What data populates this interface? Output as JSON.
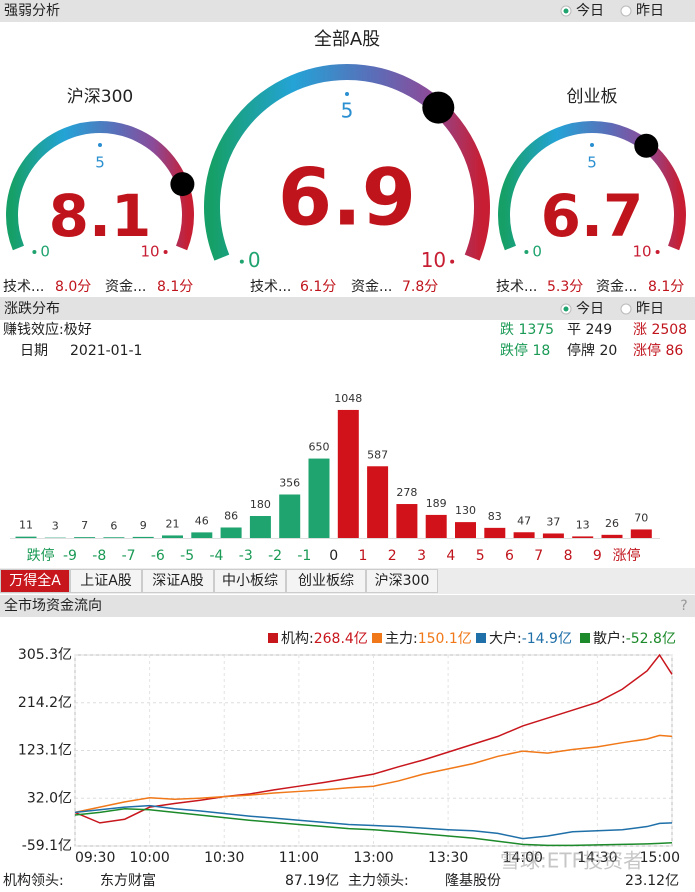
{
  "strength": {
    "title": "强弱分析",
    "options": [
      "今日",
      "昨日"
    ],
    "gauges": [
      {
        "name": "沪深300",
        "score": 8.1,
        "scale": [
          0,
          5,
          10
        ],
        "tech_label": "技术...",
        "tech": "8.0分",
        "fund_label": "资金...",
        "fund": "8.1分"
      },
      {
        "name": "全部A股",
        "score": 6.9,
        "scale": [
          0,
          5,
          10
        ],
        "tech_label": "技术...",
        "tech": "6.1分",
        "fund_label": "资金...",
        "fund": "7.8分"
      },
      {
        "name": "创业板",
        "score": 6.7,
        "scale": [
          0,
          5,
          10
        ],
        "tech_label": "技术...",
        "tech": "5.3分",
        "fund_label": "资金...",
        "fund": "8.1分"
      }
    ]
  },
  "distribution": {
    "title": "涨跌分布",
    "options": [
      "今日",
      "昨日"
    ],
    "effect": "赚钱效应:极好",
    "date_label": "日期",
    "date": "2021-01-1",
    "stats": [
      "跌 1375",
      "平 249",
      "涨 2508",
      "跌停 18",
      "停牌 20",
      "涨停 86"
    ],
    "chart": {
      "type": "bar",
      "edge_labels": [
        "跌停",
        "-9",
        "-8",
        "-7",
        "-6",
        "-5",
        "-4",
        "-3",
        "-2",
        "-1",
        "0",
        "1",
        "2",
        "3",
        "4",
        "5",
        "6",
        "7",
        "8",
        "9",
        "涨停"
      ],
      "values": [
        11,
        3,
        7,
        6,
        9,
        21,
        46,
        86,
        180,
        356,
        650,
        1048,
        587,
        278,
        189,
        130,
        83,
        47,
        37,
        13,
        26,
        70
      ],
      "colors": [
        "#1fa36f",
        "#1fa36f",
        "#1fa36f",
        "#1fa36f",
        "#1fa36f",
        "#1fa36f",
        "#1fa36f",
        "#1fa36f",
        "#1fa36f",
        "#1fa36f",
        "#1fa36f",
        "#d2121b",
        "#d2121b",
        "#d2121b",
        "#d2121b",
        "#d2121b",
        "#d2121b",
        "#d2121b",
        "#d2121b",
        "#d2121b",
        "#d2121b",
        "#d2121b"
      ]
    }
  },
  "tabs": [
    "万得全A",
    "上证A股",
    "深证A股",
    "中小板综",
    "创业板综",
    "沪深300"
  ],
  "flow": {
    "title": "全市场资金流向",
    "help": "?",
    "chart": {
      "type": "line",
      "x": [
        0,
        10,
        20,
        30,
        40,
        50,
        60,
        70,
        80,
        90,
        100,
        110,
        120,
        130,
        140,
        150,
        160,
        170,
        180,
        190,
        200,
        210,
        220,
        230,
        235,
        240
      ],
      "xlim": [
        0,
        240
      ],
      "xticks": [
        {
          "value": 0,
          "label": "09:30"
        },
        {
          "value": 30,
          "label": "10:00"
        },
        {
          "value": 60,
          "label": "10:30"
        },
        {
          "value": 90,
          "label": "11:00"
        },
        {
          "value": 120,
          "label": "13:00"
        },
        {
          "value": 150,
          "label": "13:30"
        },
        {
          "value": 180,
          "label": "14:00"
        },
        {
          "value": 210,
          "label": "14:30"
        },
        {
          "value": 240,
          "label": "15:00"
        }
      ],
      "ylim": [
        -59.1,
        305.3
      ],
      "yticks": [
        {
          "value": 305.3,
          "label": "305.3亿"
        },
        {
          "value": 214.2,
          "label": "214.2亿"
        },
        {
          "value": 123.1,
          "label": "123.1亿"
        },
        {
          "value": 32.0,
          "label": "32.0亿"
        },
        {
          "value": -59.1,
          "label": "-59.1亿"
        }
      ],
      "grid": true,
      "series": [
        {
          "name": "机构:",
          "value_label": "268.4亿",
          "color": "#c8161d",
          "values": [
            5,
            -15,
            -8,
            15,
            22,
            28,
            35,
            40,
            48,
            55,
            62,
            70,
            78,
            92,
            105,
            120,
            135,
            150,
            170,
            185,
            200,
            215,
            240,
            275,
            305.3,
            268.4
          ]
        },
        {
          "name": "主力:",
          "value_label": "150.1亿",
          "color": "#f07818",
          "values": [
            5,
            15,
            25,
            33,
            30,
            32,
            35,
            38,
            42,
            45,
            48,
            52,
            55,
            65,
            78,
            88,
            98,
            112,
            122,
            118,
            125,
            130,
            138,
            145,
            152,
            150.1
          ]
        },
        {
          "name": "大户:",
          "value_label": "-14.9亿",
          "color": "#1f6fa8",
          "values": [
            5,
            10,
            15,
            18,
            12,
            8,
            3,
            -2,
            -6,
            -10,
            -14,
            -18,
            -20,
            -22,
            -25,
            -28,
            -30,
            -35,
            -45,
            -40,
            -32,
            -30,
            -28,
            -22,
            -16,
            -14.9
          ]
        },
        {
          "name": "散户:",
          "value_label": "-52.8亿",
          "color": "#1c8a2a",
          "values": [
            0,
            5,
            12,
            10,
            5,
            0,
            -5,
            -10,
            -14,
            -18,
            -22,
            -26,
            -28,
            -32,
            -36,
            -40,
            -44,
            -50,
            -56,
            -58,
            -58,
            -57,
            -56,
            -55,
            -54,
            -52.8
          ]
        }
      ]
    }
  },
  "footer": {
    "inst_label": "机构领头:",
    "inst_stock": "东方财富",
    "inst_value": "87.19亿",
    "main_label": "主力领头:",
    "main_stock": "隆基股份",
    "main_value": "23.12亿"
  },
  "watermark": "雪球:ETF投资者"
}
